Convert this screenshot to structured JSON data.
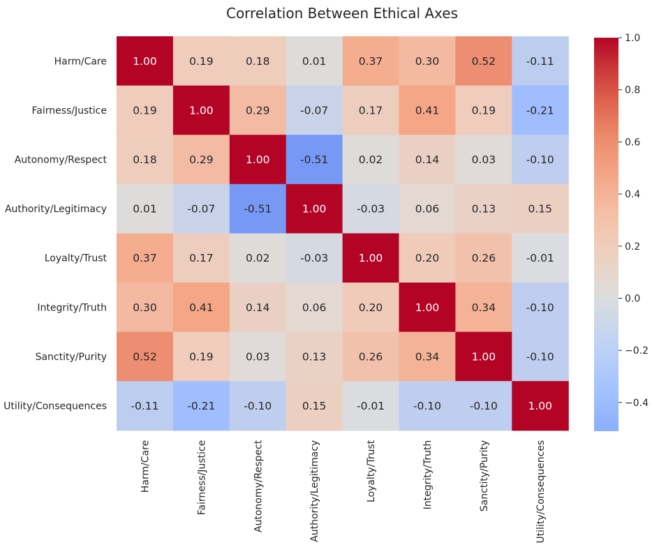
{
  "chart_data": {
    "type": "heatmap",
    "title": "Correlation Between Ethical Axes",
    "rows": [
      "Harm/Care",
      "Fairness/Justice",
      "Autonomy/Respect",
      "Authority/Legitimacy",
      "Loyalty/Trust",
      "Integrity/Truth",
      "Sanctity/Purity",
      "Utility/Consequences"
    ],
    "columns": [
      "Harm/Care",
      "Fairness/Justice",
      "Autonomy/Respect",
      "Authority/Legitimacy",
      "Loyalty/Trust",
      "Integrity/Truth",
      "Sanctity/Purity",
      "Utility/Consequences"
    ],
    "values": [
      [
        1.0,
        0.19,
        0.18,
        0.01,
        0.37,
        0.3,
        0.52,
        -0.11
      ],
      [
        0.19,
        1.0,
        0.29,
        -0.07,
        0.17,
        0.41,
        0.19,
        -0.21
      ],
      [
        0.18,
        0.29,
        1.0,
        -0.51,
        0.02,
        0.14,
        0.03,
        -0.1
      ],
      [
        0.01,
        -0.07,
        -0.51,
        1.0,
        -0.03,
        0.06,
        0.13,
        0.15
      ],
      [
        0.37,
        0.17,
        0.02,
        -0.03,
        1.0,
        0.2,
        0.26,
        -0.01
      ],
      [
        0.3,
        0.41,
        0.14,
        0.06,
        0.2,
        1.0,
        0.34,
        -0.1
      ],
      [
        0.52,
        0.19,
        0.03,
        0.13,
        0.26,
        0.34,
        1.0,
        -0.1
      ],
      [
        -0.11,
        -0.21,
        -0.1,
        0.15,
        -0.01,
        -0.1,
        -0.1,
        1.0
      ]
    ],
    "annotation_format": "0.00",
    "colormap": "coolwarm",
    "color_range": [
      -0.51,
      1.0
    ],
    "colorbar_ticks": [
      "1.0",
      "0.8",
      "0.6",
      "0.4",
      "0.2",
      "0.0",
      "−0.2",
      "−0.4"
    ],
    "colorbar_tick_values": [
      1.0,
      0.8,
      0.6,
      0.4,
      0.2,
      0.0,
      -0.2,
      -0.4
    ],
    "colorbar_position": "right",
    "grid": false
  }
}
